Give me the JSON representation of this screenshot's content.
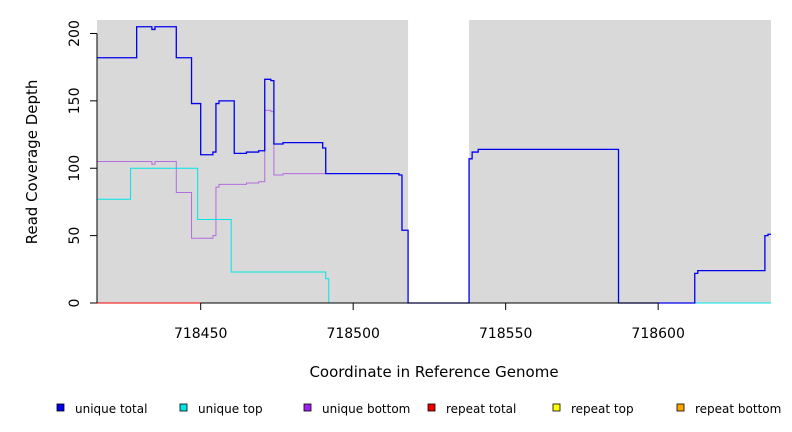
{
  "chart_data": {
    "type": "line",
    "title": "",
    "xlabel": "Coordinate in Reference Genome",
    "ylabel": "Read Coverage Depth",
    "xlim": [
      718416,
      718637
    ],
    "ylim": [
      0,
      210
    ],
    "x_ticks": [
      718450,
      718500,
      718550,
      718600
    ],
    "y_ticks": [
      0,
      50,
      100,
      150,
      200
    ],
    "grid": false,
    "background": "#d9d9d9",
    "highlight_gap": [
      718518,
      718538
    ],
    "legend_position": "bottom",
    "series": [
      {
        "name": "unique total",
        "color": "#0000ee",
        "points": [
          [
            718416,
            182
          ],
          [
            718429,
            182
          ],
          [
            718429,
            205
          ],
          [
            718434,
            205
          ],
          [
            718434,
            203
          ],
          [
            718435,
            203
          ],
          [
            718435,
            205
          ],
          [
            718442,
            205
          ],
          [
            718442,
            182
          ],
          [
            718447,
            182
          ],
          [
            718447,
            148
          ],
          [
            718450,
            148
          ],
          [
            718450,
            110
          ],
          [
            718454,
            110
          ],
          [
            718454,
            112
          ],
          [
            718455,
            112
          ],
          [
            718455,
            148
          ],
          [
            718456,
            148
          ],
          [
            718456,
            150
          ],
          [
            718461,
            150
          ],
          [
            718461,
            111
          ],
          [
            718465,
            111
          ],
          [
            718465,
            112
          ],
          [
            718469,
            112
          ],
          [
            718469,
            113
          ],
          [
            718471,
            113
          ],
          [
            718471,
            166
          ],
          [
            718473,
            166
          ],
          [
            718473,
            165
          ],
          [
            718474,
            165
          ],
          [
            718474,
            118
          ],
          [
            718477,
            118
          ],
          [
            718477,
            119
          ],
          [
            718490,
            119
          ],
          [
            718490,
            115
          ],
          [
            718491,
            115
          ],
          [
            718491,
            96
          ],
          [
            718515,
            96
          ],
          [
            718515,
            95
          ],
          [
            718516,
            95
          ],
          [
            718516,
            54
          ],
          [
            718518,
            54
          ],
          [
            718518,
            0
          ],
          [
            718538,
            0
          ],
          [
            718538,
            107
          ],
          [
            718539,
            107
          ],
          [
            718539,
            112
          ],
          [
            718541,
            112
          ],
          [
            718541,
            114
          ],
          [
            718587,
            114
          ],
          [
            718587,
            0
          ],
          [
            718612,
            0
          ],
          [
            718612,
            22
          ],
          [
            718613,
            22
          ],
          [
            718613,
            24
          ],
          [
            718635,
            24
          ],
          [
            718635,
            50
          ],
          [
            718636,
            50
          ],
          [
            718636,
            51
          ],
          [
            718637,
            51
          ]
        ]
      },
      {
        "name": "unique top",
        "color": "#00e5e5",
        "points": [
          [
            718416,
            77
          ],
          [
            718427,
            77
          ],
          [
            718427,
            100
          ],
          [
            718449,
            100
          ],
          [
            718449,
            62
          ],
          [
            718460,
            62
          ],
          [
            718460,
            23
          ],
          [
            718491,
            23
          ],
          [
            718491,
            18
          ],
          [
            718492,
            18
          ],
          [
            718492,
            0
          ],
          [
            718637,
            0
          ]
        ]
      },
      {
        "name": "unique bottom",
        "color": "#b36bde",
        "points": [
          [
            718416,
            105
          ],
          [
            718434,
            105
          ],
          [
            718434,
            103
          ],
          [
            718435,
            103
          ],
          [
            718435,
            105
          ],
          [
            718442,
            105
          ],
          [
            718442,
            82
          ],
          [
            718447,
            82
          ],
          [
            718447,
            48
          ],
          [
            718454,
            48
          ],
          [
            718454,
            50
          ],
          [
            718455,
            50
          ],
          [
            718455,
            86
          ],
          [
            718456,
            86
          ],
          [
            718456,
            88
          ],
          [
            718465,
            88
          ],
          [
            718465,
            89
          ],
          [
            718469,
            89
          ],
          [
            718469,
            90
          ],
          [
            718471,
            90
          ],
          [
            718471,
            143
          ],
          [
            718473,
            143
          ],
          [
            718473,
            142
          ],
          [
            718474,
            142
          ],
          [
            718474,
            95
          ],
          [
            718477,
            95
          ],
          [
            718477,
            96
          ],
          [
            718491,
            96
          ]
        ]
      },
      {
        "name": "repeat total",
        "color": "#ee0000",
        "points": [
          [
            718416,
            0
          ],
          [
            718491,
            0
          ]
        ]
      },
      {
        "name": "repeat top",
        "color": "#eeee00",
        "points": [
          [
            718416,
            0
          ],
          [
            718491,
            0
          ]
        ]
      },
      {
        "name": "repeat bottom",
        "color": "#ee9a00",
        "points": [
          [
            718416,
            0
          ],
          [
            718491,
            0
          ]
        ]
      }
    ],
    "baseline_color": "#66cc66",
    "legend": [
      {
        "label": "unique total",
        "color": "#0000ee"
      },
      {
        "label": "unique top",
        "color": "#00e5e5"
      },
      {
        "label": "unique bottom",
        "color": "#a020f0"
      },
      {
        "label": "repeat total",
        "color": "#ee0000"
      },
      {
        "label": "repeat top",
        "color": "#ffff00"
      },
      {
        "label": "repeat bottom",
        "color": "#ffa500"
      }
    ]
  }
}
